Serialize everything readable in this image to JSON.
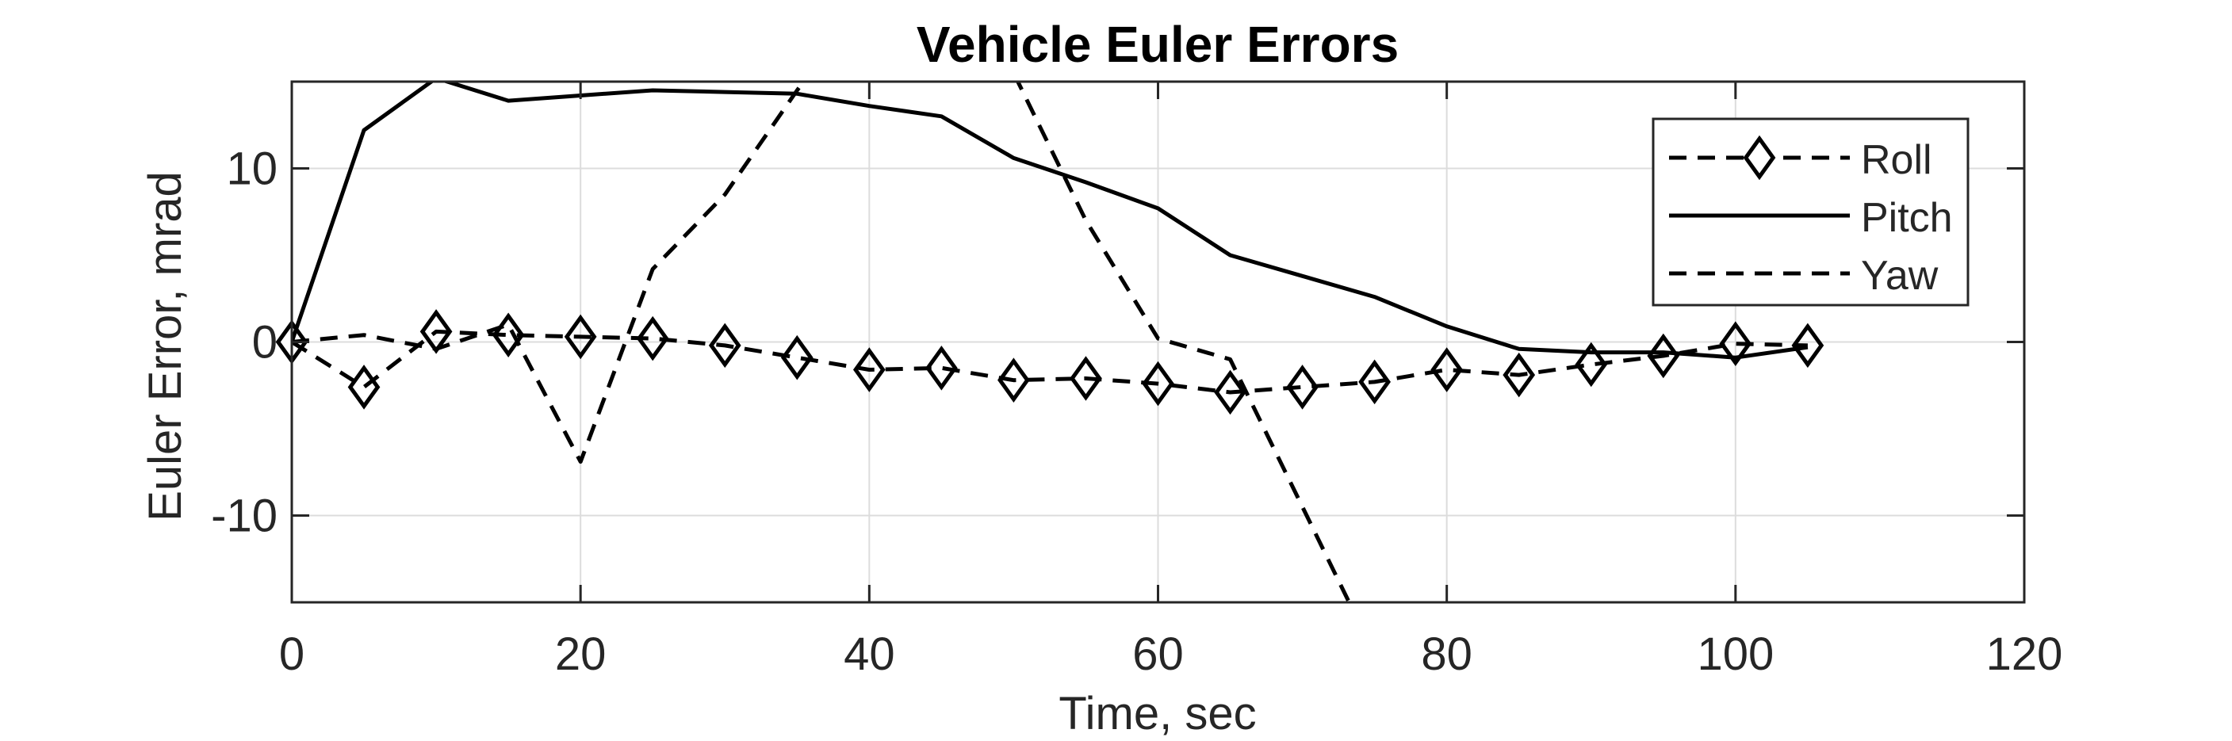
{
  "chart_data": {
    "type": "line",
    "title": "Vehicle Euler Errors",
    "xlabel": "Time, sec",
    "ylabel": "Euler Error, mrad",
    "xlim": [
      0,
      120
    ],
    "ylim": [
      -15,
      15
    ],
    "xticks": [
      0,
      20,
      40,
      60,
      80,
      100,
      120
    ],
    "yticks": [
      -10,
      0,
      10
    ],
    "xtick_labels": [
      "0",
      "20",
      "40",
      "60",
      "80",
      "100",
      "120"
    ],
    "ytick_labels": [
      "-10",
      "0",
      "10"
    ],
    "grid": true,
    "legend_position": "top-right",
    "series": [
      {
        "name": "Roll",
        "line_style": "dashed",
        "marker": "diamond",
        "color": "#000000",
        "x": [
          0,
          5,
          10,
          15,
          20,
          25,
          30,
          35,
          40,
          45,
          50,
          55,
          60,
          65,
          70,
          75,
          80,
          85,
          90,
          95,
          100,
          105
        ],
        "y": [
          0,
          -2.6,
          0.6,
          0.4,
          0.3,
          0.2,
          -0.2,
          -0.9,
          -1.6,
          -1.5,
          -2.2,
          -2.1,
          -2.4,
          -2.9,
          -2.6,
          -2.3,
          -1.6,
          -1.9,
          -1.3,
          -0.8,
          -0.1,
          -0.2
        ]
      },
      {
        "name": "Pitch",
        "line_style": "solid",
        "marker": "none",
        "color": "#000000",
        "x": [
          0,
          5,
          10,
          15,
          20,
          25,
          30,
          35,
          40,
          45,
          50,
          55,
          60,
          65,
          70,
          75,
          80,
          85,
          90,
          95,
          100,
          105
        ],
        "y": [
          0,
          12.2,
          15.2,
          13.9,
          14.2,
          14.5,
          14.4,
          14.3,
          13.6,
          13.0,
          10.6,
          9.2,
          7.7,
          5.0,
          3.8,
          2.6,
          0.9,
          -0.4,
          -0.6,
          -0.6,
          -0.9,
          -0.3
        ]
      },
      {
        "name": "Yaw",
        "line_style": "dashed",
        "marker": "none",
        "color": "#000000",
        "x": [
          0,
          5,
          10,
          15,
          20,
          25,
          30,
          35,
          40,
          45,
          50,
          55,
          60,
          65,
          70,
          75
        ],
        "y": [
          0,
          0.4,
          -0.4,
          1.0,
          -6.9,
          4.2,
          8.5,
          14.5,
          20.0,
          25.0,
          15.5,
          7.0,
          0.2,
          -1.0,
          -9.5,
          -18.0
        ]
      }
    ]
  }
}
